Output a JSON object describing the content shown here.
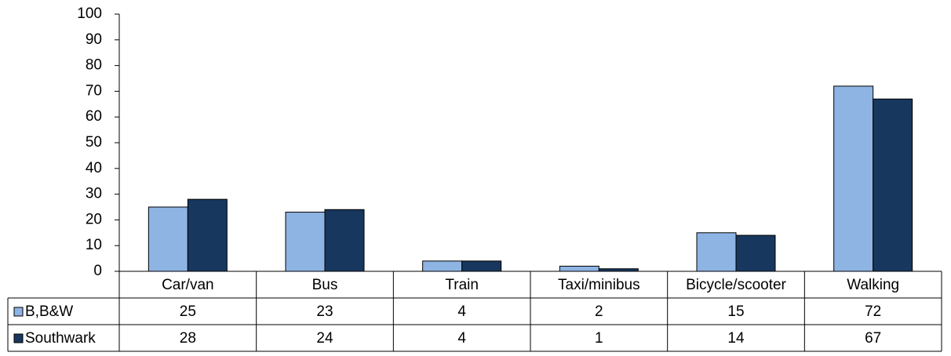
{
  "chart_data": {
    "type": "bar",
    "categories": [
      "Car/van",
      "Bus",
      "Train",
      "Taxi/minibus",
      "Bicycle/scooter",
      "Walking"
    ],
    "series": [
      {
        "name": "B,B&W",
        "color": "#8eb4e3",
        "values": [
          25,
          23,
          4,
          2,
          15,
          72
        ]
      },
      {
        "name": "Southwark",
        "color": "#17375e",
        "values": [
          28,
          24,
          4,
          1,
          14,
          67
        ]
      }
    ],
    "ylim": [
      0,
      100
    ],
    "yticks": [
      0,
      10,
      20,
      30,
      40,
      50,
      60,
      70,
      80,
      90,
      100
    ],
    "data_table": true
  }
}
